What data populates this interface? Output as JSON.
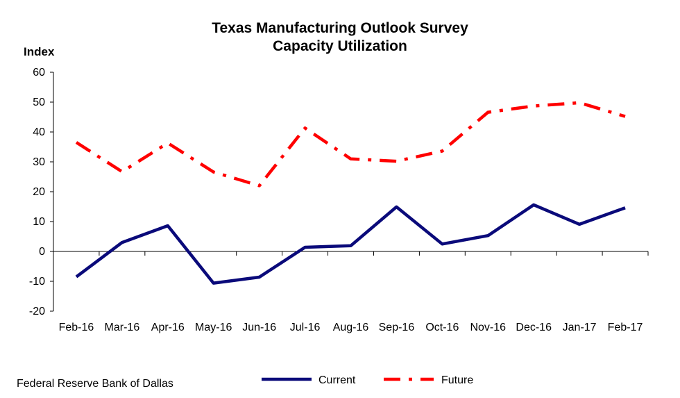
{
  "chart_data": {
    "type": "line",
    "title": "Texas Manufacturing Outlook Survey",
    "subtitle": "Capacity Utilization",
    "ylabel": "Index",
    "xlabel": "",
    "ylim": [
      -20,
      60
    ],
    "yticks": [
      -20,
      -10,
      0,
      10,
      20,
      30,
      40,
      50,
      60
    ],
    "grid": false,
    "legend_position": "bottom",
    "categories": [
      "Feb-16",
      "Mar-16",
      "Apr-16",
      "May-16",
      "Jun-16",
      "Jul-16",
      "Aug-16",
      "Sep-16",
      "Oct-16",
      "Nov-16",
      "Dec-16",
      "Jan-17",
      "Feb-17"
    ],
    "series": [
      {
        "name": "Current",
        "color": "#0A0A7A",
        "style": "solid",
        "values": [
          -8.5,
          3.0,
          8.6,
          -10.6,
          -8.6,
          1.4,
          1.9,
          14.9,
          2.5,
          5.3,
          15.6,
          9.1,
          14.6
        ]
      },
      {
        "name": "Future",
        "color": "#FF0000",
        "style": "dash-dot",
        "values": [
          36.5,
          26.7,
          36.3,
          26.6,
          22.0,
          41.3,
          31.0,
          30.2,
          33.6,
          46.6,
          48.7,
          49.8,
          45.2
        ]
      }
    ]
  },
  "footer": {
    "source": "Federal Reserve Bank of Dallas"
  }
}
